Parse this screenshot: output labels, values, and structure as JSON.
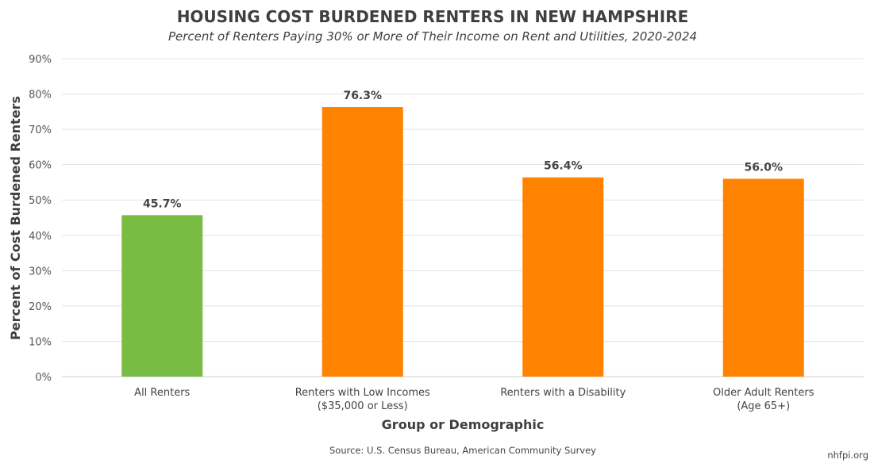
{
  "chart_data": {
    "type": "bar",
    "title": "HOUSING COST BURDENED RENTERS IN NEW HAMPSHIRE",
    "subtitle": "Percent of Renters Paying 30% or More of Their Income on Rent and Utilities, 2020-2024",
    "categories": [
      [
        "All Renters"
      ],
      [
        "Renters with Low Incomes",
        "($35,000 or Less)"
      ],
      [
        "Renters with a Disability"
      ],
      [
        "Older Adult Renters",
        "(Age 65+)"
      ]
    ],
    "values": [
      45.7,
      76.3,
      56.4,
      56.0
    ],
    "data_labels": [
      "45.7%",
      "76.3%",
      "56.4%",
      "56.0%"
    ],
    "colors": [
      "#78bc43",
      "#ff8300",
      "#ff8300",
      "#ff8300"
    ],
    "xlabel": "Group or Demographic",
    "ylabel": "Percent of Cost Burdened Renters",
    "ylim": [
      0,
      90
    ],
    "yticks": [
      0,
      10,
      20,
      30,
      40,
      50,
      60,
      70,
      80,
      90
    ],
    "ytick_labels": [
      "0%",
      "10%",
      "20%",
      "30%",
      "40%",
      "50%",
      "60%",
      "70%",
      "80%",
      "90%"
    ],
    "grid": true,
    "source": "Source: U.S. Census Bureau, American Community Survey",
    "credit": "nhfpi.org"
  }
}
